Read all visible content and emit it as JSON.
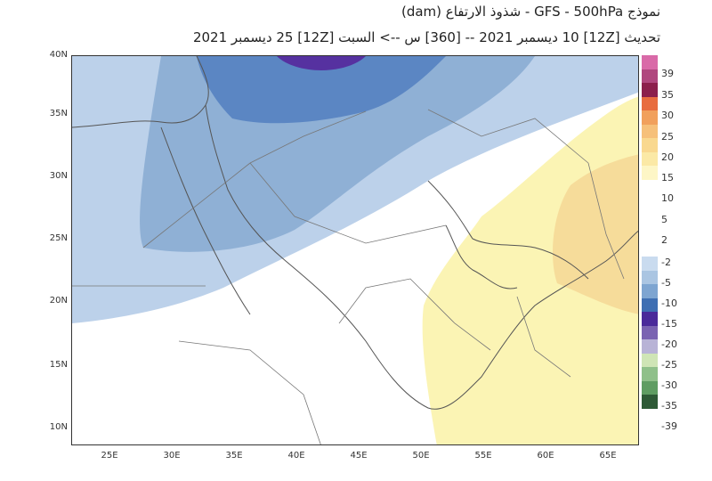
{
  "header": {
    "title": "نموذج GFS  -  500hPa - شذوذ الارتفاع (dam)",
    "subtitle": "تحديث [12Z] 10 ديسمبر 2021 -- [360] س --> السبت [12Z] 25 ديسمبر 2021"
  },
  "map": {
    "region": "Middle East and Arabian Peninsula",
    "lat_labels": [
      "40N",
      "35N",
      "30N",
      "25N",
      "20N",
      "15N",
      "10N"
    ],
    "lon_labels": [
      "25E",
      "30E",
      "35E",
      "40E",
      "45E",
      "50E",
      "55E",
      "60E",
      "65E"
    ],
    "lat_range": [
      9,
      40
    ],
    "lon_range": [
      22,
      67
    ],
    "anomaly_fields": [
      {
        "name": "light-blue-negative",
        "range": "-2 to -5",
        "color": "#bcd1ea"
      },
      {
        "name": "mid-blue-negative",
        "range": "-5 to -10",
        "color": "#8fb0d5"
      },
      {
        "name": "deep-blue-negative",
        "range": "-10 to -15",
        "color": "#5b86c3"
      },
      {
        "name": "purple-core",
        "range": "-15 to -20",
        "color": "#5631a0"
      },
      {
        "name": "light-yellow-positive",
        "range": "2 to 5",
        "color": "#fbf4b4"
      },
      {
        "name": "orange-yellow-positive",
        "range": "5 to 10",
        "color": "#f6dc9a"
      }
    ]
  },
  "colorbar": {
    "positive": [
      {
        "label": "39",
        "color": "#d96aa8"
      },
      {
        "label": "35",
        "color": "#b0477e"
      },
      {
        "label": "30",
        "color": "#8c1f4c"
      },
      {
        "label": "25",
        "color": "#e86c3f"
      },
      {
        "label": "20",
        "color": "#f1a05c"
      },
      {
        "label": "15",
        "color": "#f6c07a"
      },
      {
        "label": "10",
        "color": "#f9d88f"
      },
      {
        "label": "5",
        "color": "#fbe9a6"
      },
      {
        "label": "2",
        "color": "#fdf6c6"
      }
    ],
    "negative": [
      {
        "label": "-2",
        "color": "#c9dbef"
      },
      {
        "label": "-5",
        "color": "#aac5e2"
      },
      {
        "label": "-10",
        "color": "#7ea5d1"
      },
      {
        "label": "-15",
        "color": "#3f6fb3"
      },
      {
        "label": "-20",
        "color": "#4a2a9a"
      },
      {
        "label": "-25",
        "color": "#7a63b2"
      },
      {
        "label": "-30",
        "color": "#b8b3d6"
      },
      {
        "label": "-35",
        "color": "#cfe5b6"
      },
      {
        "label": "-39",
        "color": "#8fc08a"
      },
      {
        "label": "",
        "color": "#5f9d62"
      },
      {
        "label": "",
        "color": "#2e5a36"
      }
    ]
  }
}
